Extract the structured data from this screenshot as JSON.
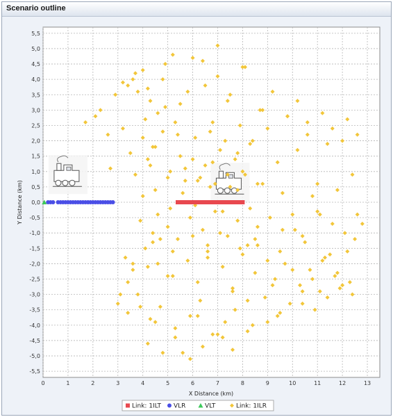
{
  "window": {
    "title": "Scenario outline"
  },
  "colors": {
    "ilt": "#e8484f",
    "vlr": "#4a4ee6",
    "vlt": "#3cc95a",
    "ilr": "#f2c63a",
    "plot_bg": "#ffffff",
    "grid": "#b5b5b5"
  },
  "icons": [
    "train-icon-left",
    "train-icon-center"
  ],
  "chart_data": {
    "type": "scatter",
    "title": "",
    "xlabel": "X Distance (km)",
    "ylabel": "Y Distance (km)",
    "xlim": [
      0,
      13.5
    ],
    "ylim": [
      -5.7,
      5.7
    ],
    "x_ticks": [
      0,
      1,
      2,
      3,
      4,
      5,
      6,
      7,
      8,
      9,
      10,
      11,
      12,
      13
    ],
    "y_ticks": [
      5.5,
      5.0,
      4.5,
      4.0,
      3.5,
      3.0,
      2.5,
      2.0,
      1.5,
      1.0,
      0.5,
      0.0,
      -0.5,
      -1.0,
      -1.5,
      -2.0,
      -2.5,
      -3.0,
      -3.5,
      -4.0,
      -4.5,
      -5.0,
      -5.5
    ],
    "x_tick_labels": [
      "0",
      "1",
      "2",
      "3",
      "4",
      "5",
      "6",
      "7",
      "8",
      "9",
      "10",
      "11",
      "12",
      "13"
    ],
    "y_tick_labels": [
      "5,5",
      "5,0",
      "4,5",
      "4,0",
      "3,5",
      "3,0",
      "2,5",
      "2,0",
      "1,5",
      "1,0",
      "0,5",
      "0,0",
      "-0,5",
      "-1,0",
      "-1,5",
      "-2,0",
      "-2,5",
      "-3,0",
      "-3,5",
      "-4,0",
      "-4,5",
      "-5,0",
      "-5,5"
    ],
    "grid": true,
    "legend_position": "bottom",
    "series": [
      {
        "name": "Link: 1ILT",
        "marker": "square",
        "x": [
          5.4,
          5.5,
          5.6,
          5.7,
          5.8,
          5.9,
          6.0,
          6.1,
          6.2,
          6.3,
          6.4,
          6.5,
          6.6,
          6.7,
          6.8,
          6.9,
          7.0,
          7.1,
          7.2,
          7.3,
          7.4,
          7.5,
          7.6,
          7.7,
          7.8,
          7.9,
          8.0
        ],
        "y": [
          0,
          0,
          0,
          0,
          0,
          0,
          0,
          0,
          0,
          0,
          0,
          0,
          0,
          0,
          0,
          0,
          0,
          0,
          0,
          0,
          0,
          0,
          0,
          0,
          0,
          0,
          0
        ]
      },
      {
        "name": "VLR",
        "marker": "circle",
        "x": [
          0.2,
          0.3,
          0.4,
          0.6,
          0.7,
          0.8,
          0.9,
          1.0,
          1.1,
          1.2,
          1.3,
          1.4,
          1.5,
          1.6,
          1.7,
          1.8,
          1.9,
          2.0,
          2.1,
          2.2,
          2.3,
          2.4,
          2.5,
          2.6,
          2.7,
          2.8
        ],
        "y": [
          0,
          0,
          0,
          0,
          0,
          0,
          0,
          0,
          0,
          0,
          0,
          0,
          0,
          0,
          0,
          0,
          0,
          0,
          0,
          0,
          0,
          0,
          0,
          0,
          0,
          0
        ]
      },
      {
        "name": "VLT",
        "marker": "triangle",
        "x": [
          0.05
        ],
        "y": [
          0
        ]
      },
      {
        "name": "Link: 1ILR",
        "marker": "diamond",
        "x": [
          1.7,
          2.1,
          2.3,
          2.6,
          2.7,
          2.9,
          3.1,
          3.2,
          3.4,
          3.4,
          3.6,
          3.8,
          3.9,
          4.0,
          4.1,
          4.2,
          4.3,
          4.4,
          4.5,
          4.6,
          4.7,
          4.8,
          4.9,
          5.0,
          5.2,
          5.4,
          5.6,
          5.8,
          6.0,
          6.2,
          6.4,
          6.6,
          6.8,
          7.0,
          7.2,
          7.4,
          7.6,
          7.8,
          8.0,
          8.2,
          8.4,
          8.6,
          8.8,
          9.0,
          9.2,
          9.4,
          9.6,
          9.8,
          10.0,
          10.2,
          10.4,
          10.6,
          10.8,
          11.0,
          11.2,
          11.4,
          11.6,
          11.8,
          12.0,
          12.2,
          12.4,
          12.6,
          12.8,
          3.5,
          3.7,
          4.0,
          4.2,
          4.5,
          4.8,
          5.1,
          5.3,
          5.5,
          5.7,
          6.1,
          6.3,
          6.5,
          6.7,
          6.9,
          7.1,
          7.3,
          7.5,
          7.7,
          7.9,
          8.1,
          8.3,
          3.9,
          4.4,
          4.6,
          5.0,
          5.4,
          5.9,
          6.4,
          6.9,
          7.4,
          7.8,
          8.2,
          8.6,
          9.1,
          9.5,
          10.1,
          10.5,
          11.1,
          11.5,
          12.1,
          12.5,
          3.3,
          3.6,
          4.1,
          4.6,
          5.2,
          5.8,
          6.2,
          6.6,
          7.2,
          7.6,
          8.0,
          8.5,
          9.0,
          9.3,
          9.7,
          10.3,
          10.7,
          11.3,
          11.7,
          12.3,
          3.0,
          3.4,
          3.8,
          4.3,
          4.7,
          5.3,
          5.9,
          6.3,
          6.8,
          7.3,
          7.7,
          8.4,
          8.9,
          9.4,
          9.9,
          10.4,
          10.9,
          11.4,
          11.9,
          12.4,
          3.2,
          3.7,
          4.2,
          4.9,
          5.5,
          6.0,
          6.5,
          7.0,
          7.5,
          8.1,
          8.7,
          9.2,
          9.8,
          10.2,
          10.6,
          11.2,
          11.6,
          12.2,
          12.6,
          4.0,
          4.5,
          5.1,
          5.6,
          6.1,
          6.7,
          7.2,
          7.8,
          8.3,
          8.8,
          9.6,
          10.0,
          10.8,
          11.0,
          11.8,
          4.2,
          4.8,
          5.3,
          5.9,
          6.4,
          7.0,
          7.6,
          8.2,
          9.0,
          9.5,
          10.4,
          11.1,
          12.0,
          4.3,
          5.0,
          5.7,
          6.2,
          6.8,
          7.4,
          8.0,
          8.6,
          3.6,
          4.4,
          5.2,
          6.0,
          6.6,
          7.1,
          7.9,
          8.5
        ],
        "y": [
          2.6,
          2.8,
          3.0,
          2.2,
          1.1,
          3.5,
          -3.0,
          2.4,
          3.8,
          -2.6,
          4.0,
          3.6,
          -3.4,
          4.3,
          2.7,
          -2.1,
          3.3,
          1.8,
          -3.9,
          2.9,
          -1.2,
          4.0,
          3.1,
          -2.4,
          4.8,
          2.2,
          -4.9,
          3.6,
          1.4,
          -3.7,
          4.6,
          -1.8,
          2.6,
          5.1,
          -4.4,
          3.3,
          -2.9,
          1.6,
          4.4,
          -3.2,
          2.0,
          -1.4,
          3.0,
          2.4,
          -2.7,
          1.3,
          -0.9,
          2.8,
          -2.2,
          1.7,
          -1.1,
          2.2,
          -2.5,
          0.6,
          -1.9,
          1.9,
          -0.7,
          -2.3,
          2.0,
          -1.6,
          0.9,
          -0.4,
          -0.7,
          1.6,
          0.9,
          2.1,
          1.4,
          1.8,
          2.3,
          1.0,
          2.6,
          1.5,
          0.7,
          2.1,
          0.8,
          1.2,
          2.3,
          0.6,
          1.7,
          2.0,
          0.5,
          1.4,
          2.5,
          0.9,
          1.9,
          -0.6,
          -1.0,
          -0.4,
          -0.8,
          -1.2,
          -0.5,
          -0.9,
          -0.3,
          -1.1,
          -0.6,
          -1.4,
          -0.8,
          -0.5,
          -1.6,
          -0.9,
          -1.3,
          -0.4,
          -1.7,
          -1.0,
          -1.2,
          -1.8,
          -2.2,
          -1.5,
          -2.0,
          -2.4,
          -1.9,
          -2.6,
          -1.6,
          -2.1,
          -2.8,
          -1.7,
          -2.3,
          -1.9,
          -2.5,
          -2.0,
          -2.7,
          -2.2,
          -1.8,
          -2.4,
          -2.6,
          -3.3,
          -3.6,
          -3.0,
          -3.8,
          -3.4,
          -4.1,
          -3.7,
          -3.2,
          -4.3,
          -3.9,
          -3.5,
          -4.0,
          -3.1,
          -3.7,
          -3.3,
          -2.9,
          -3.5,
          -3.1,
          -2.8,
          -3.0,
          3.9,
          4.2,
          3.7,
          4.5,
          3.2,
          4.7,
          3.8,
          4.1,
          3.5,
          4.4,
          3.0,
          3.6,
          2.8,
          3.3,
          2.6,
          2.9,
          2.4,
          2.7,
          2.2,
          0.2,
          0.4,
          -0.2,
          0.3,
          -0.1,
          0.5,
          -0.3,
          0.4,
          -0.2,
          0.6,
          0.3,
          -0.4,
          0.2,
          -0.3,
          0.4,
          -4.6,
          -4.9,
          -4.4,
          -5.1,
          -4.7,
          -4.3,
          -4.8,
          -4.2,
          -3.9,
          -3.6,
          -3.3,
          -2.9,
          -2.7,
          1.2,
          0.8,
          1.1,
          0.7,
          1.3,
          0.9,
          1.0,
          0.6,
          -2.0,
          -1.3,
          -1.6,
          -1.1,
          -1.4,
          -1.0,
          -1.5,
          -1.2
        ]
      }
    ]
  }
}
